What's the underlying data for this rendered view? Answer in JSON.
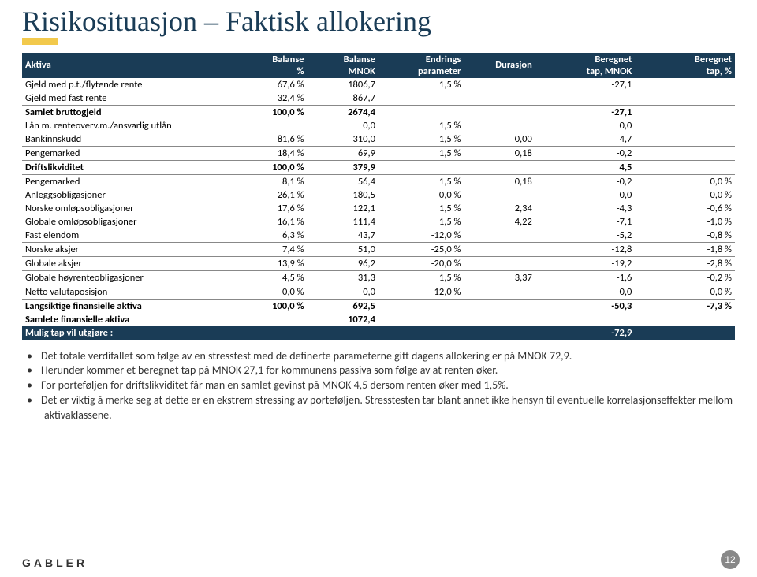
{
  "title": "Risikosituasjon – Faktisk allokering",
  "table": {
    "headers": [
      "Aktiva",
      "Balanse\n%",
      "Balanse\nMNOK",
      "Endrings\nparameter",
      "Durasjon",
      "Beregnet\ntap, MNOK",
      "Beregnet\ntap, %"
    ],
    "col_widths": [
      "30%",
      "10%",
      "10%",
      "12%",
      "10%",
      "14%",
      "14%"
    ]
  },
  "rows": [
    {
      "label": "Gjeld med p.t./flytende rente",
      "c2": "67,6 %",
      "c3": "1806,7",
      "c4": "1,5 %",
      "c5": "",
      "c6": "-27,1",
      "c7": "",
      "style": ""
    },
    {
      "label": "Gjeld med fast rente",
      "c2": "32,4 %",
      "c3": "867,7",
      "c4": "",
      "c5": "",
      "c6": "",
      "c7": "",
      "style": "underline"
    },
    {
      "label": "Samlet bruttogjeld",
      "c2": "100,0 %",
      "c3": "2674,4",
      "c4": "",
      "c5": "",
      "c6": "-27,1",
      "c7": "",
      "style": "bold-row"
    },
    {
      "label": "Lån m. renteoverv.m./ansvarlig utlån",
      "c2": "",
      "c3": "0,0",
      "c4": "1,5 %",
      "c5": "",
      "c6": "0,0",
      "c7": "",
      "style": ""
    },
    {
      "label": "Bankinnskudd",
      "c2": "81,6 %",
      "c3": "310,0",
      "c4": "1,5 %",
      "c5": "0,00",
      "c6": "4,7",
      "c7": "",
      "style": "row-bottom-border"
    },
    {
      "label": "Pengemarked",
      "c2": "18,4 %",
      "c3": "69,9",
      "c4": "1,5 %",
      "c5": "0,18",
      "c6": "-0,2",
      "c7": "",
      "style": ""
    },
    {
      "label": "Driftslikviditet",
      "c2": "100,0 %",
      "c3": "379,9",
      "c4": "",
      "c5": "",
      "c6": "4,5",
      "c7": "",
      "style": "row-top-border row-bottom-border bold-row"
    },
    {
      "label": "Pengemarked",
      "c2": "8,1 %",
      "c3": "56,4",
      "c4": "1,5 %",
      "c5": "0,18",
      "c6": "-0,2",
      "c7": "0,0 %",
      "style": ""
    },
    {
      "label": "Anleggsobligasjoner",
      "c2": "26,1 %",
      "c3": "180,5",
      "c4": "0,0 %",
      "c5": "",
      "c6": "0,0",
      "c7": "0,0 %",
      "style": ""
    },
    {
      "label": "Norske omløpsobligasjoner",
      "c2": "17,6 %",
      "c3": "122,1",
      "c4": "1,5 %",
      "c5": "2,34",
      "c6": "-4,3",
      "c7": "-0,6 %",
      "style": ""
    },
    {
      "label": "Globale omløpsobligasjoner",
      "c2": "16,1 %",
      "c3": "111,4",
      "c4": "1,5 %",
      "c5": "4,22",
      "c6": "-7,1",
      "c7": "-1,0 %",
      "style": ""
    },
    {
      "label": "Fast eiendom",
      "c2": "6,3 %",
      "c3": "43,7",
      "c4": "-12,0 %",
      "c5": "",
      "c6": "-5,2",
      "c7": "-0,8 %",
      "style": "underline"
    },
    {
      "label": "Norske aksjer",
      "c2": "7,4 %",
      "c3": "51,0",
      "c4": "-25,0 %",
      "c5": "",
      "c6": "-12,8",
      "c7": "-1,8 %",
      "style": "underline"
    },
    {
      "label": "Globale aksjer",
      "c2": "13,9 %",
      "c3": "96,2",
      "c4": "-20,0 %",
      "c5": "",
      "c6": "-19,2",
      "c7": "-2,8 %",
      "style": "underline"
    },
    {
      "label": "Globale høyrenteobligasjoner",
      "c2": "4,5 %",
      "c3": "31,3",
      "c4": "1,5 %",
      "c5": "3,37",
      "c6": "-1,6",
      "c7": "-0,2 %",
      "style": "underline"
    },
    {
      "label": "Netto valutaposisjon",
      "c2": "0,0 %",
      "c3": "0,0",
      "c4": "-12,0 %",
      "c5": "",
      "c6": "0,0",
      "c7": "0,0 %",
      "style": "underline"
    },
    {
      "label": "Langsiktige finansielle aktiva",
      "c2": "100,0 %",
      "c3": "692,5",
      "c4": "",
      "c5": "",
      "c6": "-50,3",
      "c7": "-7,3 %",
      "style": "bold-row"
    },
    {
      "label": "Samlete finansielle aktiva",
      "c2": "",
      "c3": "1072,4",
      "c4": "",
      "c5": "",
      "c6": "",
      "c7": "",
      "style": "bold-row"
    }
  ],
  "mulig": {
    "label": "Mulig tap vil utgjøre :",
    "c6": "-72,9"
  },
  "bullets": [
    "Det totale verdifallet som følge av en stresstest med de definerte parameterne gitt dagens allokering er på MNOK 72,9.",
    "Herunder kommer et beregnet tap på MNOK 27,1 for kommunens passiva som følge av at renten øker.",
    "For porteføljen for driftslikviditet får man en samlet gevinst på MNOK 4,5 dersom renten øker med 1,5%.",
    "Det er viktig å merke seg at dette er en ekstrem stressing av porteføljen. Stresstesten tar blant annet ikke hensyn til eventuelle korrelasjonseffekter mellom aktivaklassene."
  ],
  "logo_text": "GABLER",
  "page_num": "12",
  "colors": {
    "header_bg": "#1a3c56",
    "accent": "#f2c94c"
  }
}
